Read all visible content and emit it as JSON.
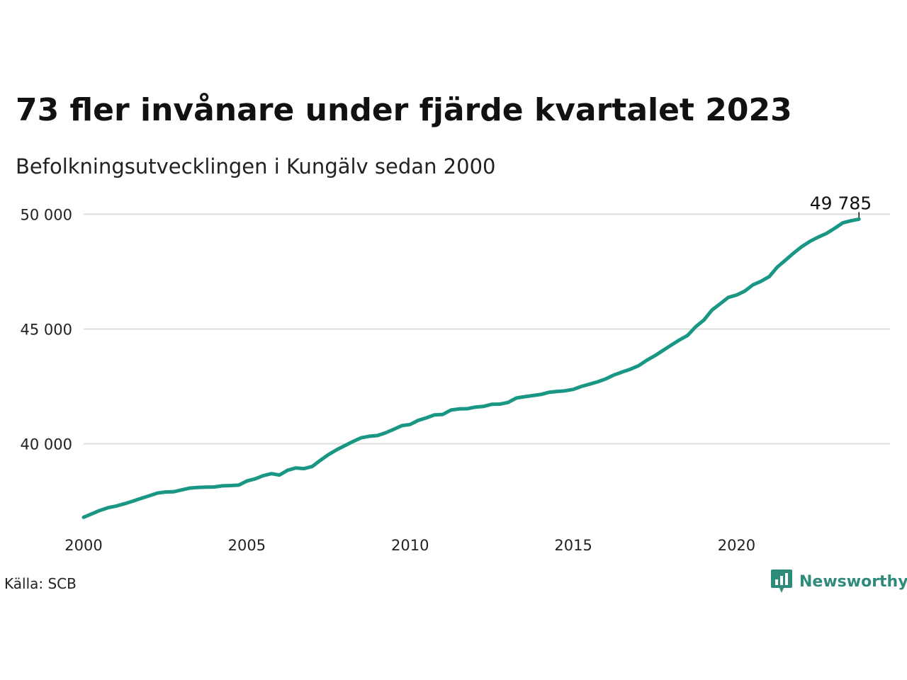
{
  "title": "73 fler invånare under fjärde kvartalet 2023",
  "subtitle": "Befolkningsutvecklingen i Kungälv sedan 2000",
  "source": "Källa: SCB",
  "logo_text": "Newsworthy",
  "logo_icon": "newsworthy-chart-bubble-icon",
  "colors": {
    "line": "#1a9784",
    "grid": "#dddddd",
    "logo": "#2e8b7a"
  },
  "chart_data": {
    "type": "line",
    "title": "73 fler invånare under fjärde kvartalet 2023",
    "subtitle": "Befolkningsutvecklingen i Kungälv sedan 2000",
    "xlabel": "",
    "ylabel": "",
    "xlim": [
      2000,
      2024.7
    ],
    "ylim": [
      36500,
      51000
    ],
    "x_ticks": [
      2000,
      2005,
      2010,
      2015,
      2020
    ],
    "x_tick_labels": [
      "2000",
      "2005",
      "2010",
      "2015",
      "2020"
    ],
    "y_ticks": [
      40000,
      45000,
      50000
    ],
    "y_tick_labels": [
      "40 000",
      "45 000",
      "50 000"
    ],
    "grid": "horizontal",
    "last_value_label": "49 785",
    "series": [
      {
        "x": [
          2000.0,
          2000.25,
          2000.5,
          2000.75,
          2001.0,
          2001.25,
          2001.5,
          2001.75,
          2002.0,
          2002.25,
          2002.5,
          2002.75,
          2003.0,
          2003.25,
          2003.5,
          2003.75,
          2004.0,
          2004.25,
          2004.5,
          2004.75,
          2005.0,
          2005.25,
          2005.5,
          2005.75,
          2006.0,
          2006.25,
          2006.5,
          2006.75,
          2007.0,
          2007.25,
          2007.5,
          2007.75,
          2008.0,
          2008.25,
          2008.5,
          2008.75,
          2009.0,
          2009.25,
          2009.5,
          2009.75,
          2010.0,
          2010.25,
          2010.5,
          2010.75,
          2011.0,
          2011.25,
          2011.5,
          2011.75,
          2012.0,
          2012.25,
          2012.5,
          2012.75,
          2013.0,
          2013.25,
          2013.5,
          2013.75,
          2014.0,
          2014.25,
          2014.5,
          2014.75,
          2015.0,
          2015.25,
          2015.5,
          2015.75,
          2016.0,
          2016.25,
          2016.5,
          2016.75,
          2017.0,
          2017.25,
          2017.5,
          2017.75,
          2018.0,
          2018.25,
          2018.5,
          2018.75,
          2019.0,
          2019.25,
          2019.5,
          2019.75,
          2020.0,
          2020.25,
          2020.5,
          2020.75,
          2021.0,
          2021.25,
          2021.5,
          2021.75,
          2022.0,
          2022.25,
          2022.5,
          2022.75,
          2023.0,
          2023.25,
          2023.5,
          2023.75
        ],
        "values": [
          36800,
          36950,
          37100,
          37220,
          37290,
          37390,
          37500,
          37620,
          37730,
          37850,
          37900,
          37910,
          37990,
          38070,
          38100,
          38110,
          38120,
          38170,
          38180,
          38200,
          38380,
          38470,
          38610,
          38700,
          38640,
          38850,
          38950,
          38920,
          39010,
          39280,
          39530,
          39740,
          39920,
          40100,
          40260,
          40330,
          40360,
          40480,
          40630,
          40790,
          40840,
          41020,
          41130,
          41260,
          41280,
          41470,
          41520,
          41530,
          41600,
          41630,
          41720,
          41730,
          41800,
          41990,
          42050,
          42100,
          42150,
          42240,
          42280,
          42310,
          42370,
          42500,
          42600,
          42700,
          42830,
          43000,
          43130,
          43250,
          43400,
          43640,
          43840,
          44070,
          44300,
          44520,
          44720,
          45100,
          45390,
          45830,
          46100,
          46380,
          46480,
          46650,
          46920,
          47080,
          47280,
          47700,
          48000,
          48310,
          48590,
          48820,
          49000,
          49160,
          49380,
          49620,
          49712,
          49785
        ]
      }
    ]
  }
}
